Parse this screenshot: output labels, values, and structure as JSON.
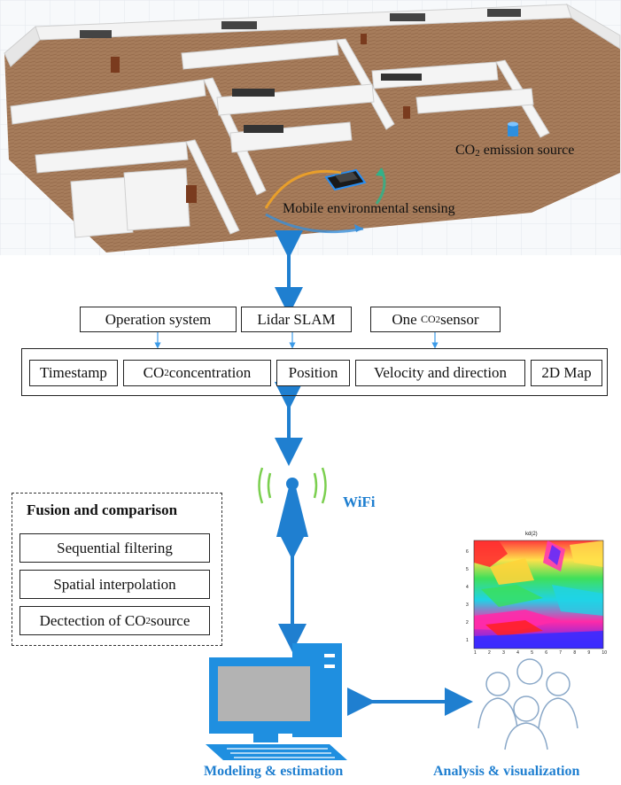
{
  "floorplan": {
    "labels": {
      "co2_source_prefix": "CO",
      "co2_source_sub": "2",
      "co2_source_suffix": " emission source",
      "mobile_sensing": "Mobile environmental sensing"
    }
  },
  "inputs": {
    "operation_system": "Operation system",
    "lidar_slam": "Lidar SLAM",
    "co2_sensor_prefix": "One ",
    "co2_sensor_co": "CO",
    "co2_sensor_sub": "2",
    "co2_sensor_suffix": " sensor"
  },
  "data_row": {
    "timestamp": "Timestamp",
    "co2_conc_prefix": "CO",
    "co2_conc_sub": "2",
    "co2_conc_suffix": " concentration",
    "position": "Position",
    "velocity": "Velocity and direction",
    "map": "2D Map"
  },
  "wifi_label": "WiFi",
  "fusion": {
    "title": "Fusion and comparison",
    "items": [
      "Sequential filtering",
      "Spatial interpolation"
    ],
    "detect_prefix": "Dectection of CO",
    "detect_sub": "2",
    "detect_suffix": " source"
  },
  "heatmap": {
    "title": "kd(2)",
    "x_ticks": [
      "1",
      "2",
      "3",
      "4",
      "5",
      "6",
      "7",
      "8",
      "9",
      "10"
    ],
    "y_ticks": [
      "6",
      "5",
      "4",
      "3",
      "2",
      "1"
    ]
  },
  "bottom": {
    "modeling": "Modeling & estimation",
    "analysis": "Analysis & visualization"
  },
  "colors": {
    "accent_blue": "#1f7fd0",
    "floor_wood": "#a77e5d",
    "wall": "#f2f2f2",
    "wifi_green": "#6cc24a"
  }
}
